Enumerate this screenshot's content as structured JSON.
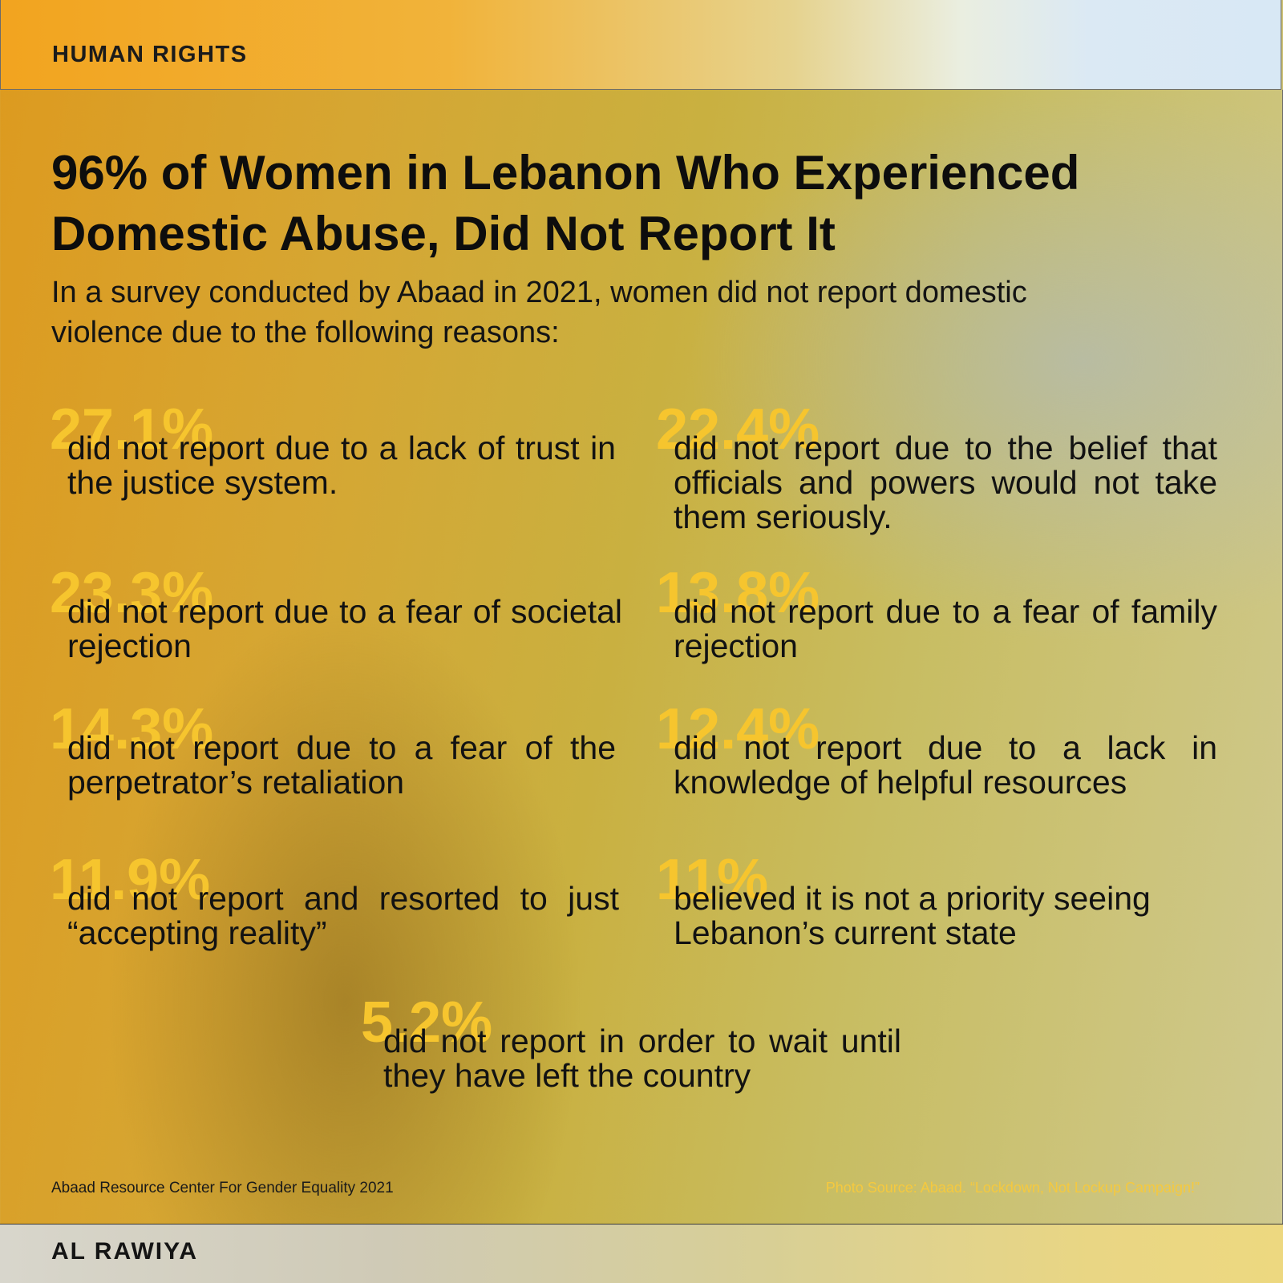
{
  "header": {
    "section": "HUMAN RIGHTS"
  },
  "title": "96% of Women in Lebanon Who Experienced Domestic Abuse, Did Not Report It",
  "subtitle": "In a survey conducted by Abaad in 2021, women did not report domestic violence due to the following reasons:",
  "stats": [
    {
      "percent": "27.1%",
      "text": "did not report due to a lack of trust in the justice system."
    },
    {
      "percent": "22.4%",
      "text": "did not report due to the belief that officials and powers would not take them seriously."
    },
    {
      "percent": "23.3%",
      "text": "did not report due to a fear of societal rejection"
    },
    {
      "percent": "13.8%",
      "text": "did not report due to a fear of family rejection"
    },
    {
      "percent": "14.3%",
      "text": "did not report due to a fear of the perpetrator’s retaliation"
    },
    {
      "percent": "12.4%",
      "text": "did not report due to a lack in knowledge of helpful resources"
    },
    {
      "percent": "11.9%",
      "text": "did not report and resorted to just “accepting reality”"
    },
    {
      "percent": "11%",
      "text": "believed it is not a priority seeing Lebanon’s current state"
    },
    {
      "percent": "5.2%",
      "text": "did not report in order to wait until they have left the country"
    }
  ],
  "footer": {
    "source": "Abaad Resource Center For Gender Equality 2021",
    "photo_source": "Photo Source: Abaad. “Lockdown, Not Lockup Campaign!”",
    "brand": "AL RAWIYA"
  },
  "colors": {
    "accent_percent": "#f6c52e",
    "header_orange": "#f2a41f",
    "header_blue": "#d8e8f5"
  }
}
